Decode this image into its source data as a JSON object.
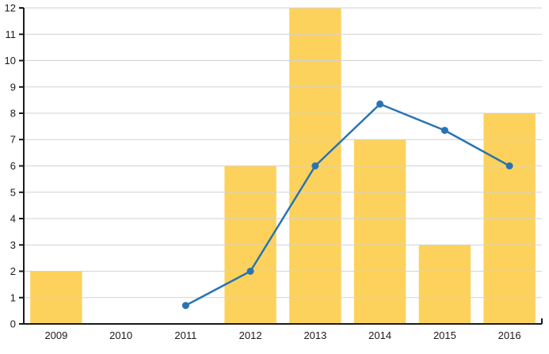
{
  "chart": {
    "background": "#ffffff",
    "grid_color": "#d2d2d2",
    "axis_color": "#1a1a1a",
    "label_color": "#1a1a1a"
  },
  "chart_data": {
    "type": "bar",
    "subtype": "combo-bar-line",
    "title": "",
    "xlabel": "",
    "ylabel": "",
    "categories": [
      "2009",
      "2010",
      "2011",
      "2012",
      "2013",
      "2014",
      "2015",
      "2016"
    ],
    "series": [
      {
        "name": "bars",
        "type": "bar",
        "color": "#fcd25c",
        "values": [
          2,
          0,
          0,
          6,
          12,
          7,
          3,
          8
        ]
      },
      {
        "name": "line",
        "type": "line",
        "color": "#2874b2",
        "values": [
          null,
          null,
          0.7,
          2,
          6,
          8.35,
          7.35,
          6
        ]
      }
    ],
    "ylim": [
      0,
      12
    ],
    "ytick_interval": 1,
    "yticks": [
      0,
      1,
      2,
      3,
      4,
      5,
      6,
      7,
      8,
      9,
      10,
      11,
      12
    ],
    "grid": "horizontal",
    "grid_over_bars": true,
    "legend": "none"
  }
}
